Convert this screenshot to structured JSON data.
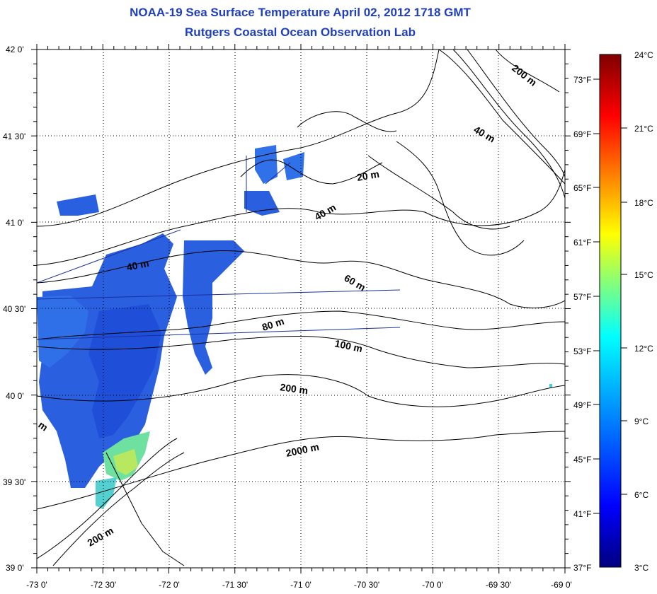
{
  "title": {
    "line1": "NOAA-19 Sea Surface Temperature April 02, 2012 1718 GMT",
    "line2": "Rutgers Coastal Ocean Observation Lab"
  },
  "map": {
    "lon_labels": [
      "-73 0'",
      "-72 30'",
      "-72 0'",
      "-71 30'",
      "-71 0'",
      "-70 30'",
      "-70 0'",
      "-69 30'",
      "-69 0'"
    ],
    "lat_labels": [
      "42 0'",
      "41 30'",
      "41 0'",
      "40 30'",
      "40 0'",
      "39 30'",
      "39 0'"
    ],
    "contour_labels": [
      "200 m",
      "40 m",
      "20 m",
      "40 m",
      "40 m",
      "60 m",
      "80 m",
      "100 m",
      "200 m",
      "2000 m",
      "200 m",
      "m"
    ]
  },
  "colorbar": {
    "celsius": [
      "24°C",
      "21°C",
      "18°C",
      "15°C",
      "12°C",
      "9°C",
      "6°C",
      "3°C"
    ],
    "fahrenheit": [
      "73°F",
      "69°F",
      "65°F",
      "61°F",
      "57°F",
      "53°F",
      "49°F",
      "45°F",
      "41°F",
      "37°F"
    ],
    "range_c": [
      3,
      24
    ],
    "colors": [
      "#7f0000",
      "#ff0000",
      "#ffff00",
      "#00ffff",
      "#0000ff",
      "#00007f"
    ]
  }
}
